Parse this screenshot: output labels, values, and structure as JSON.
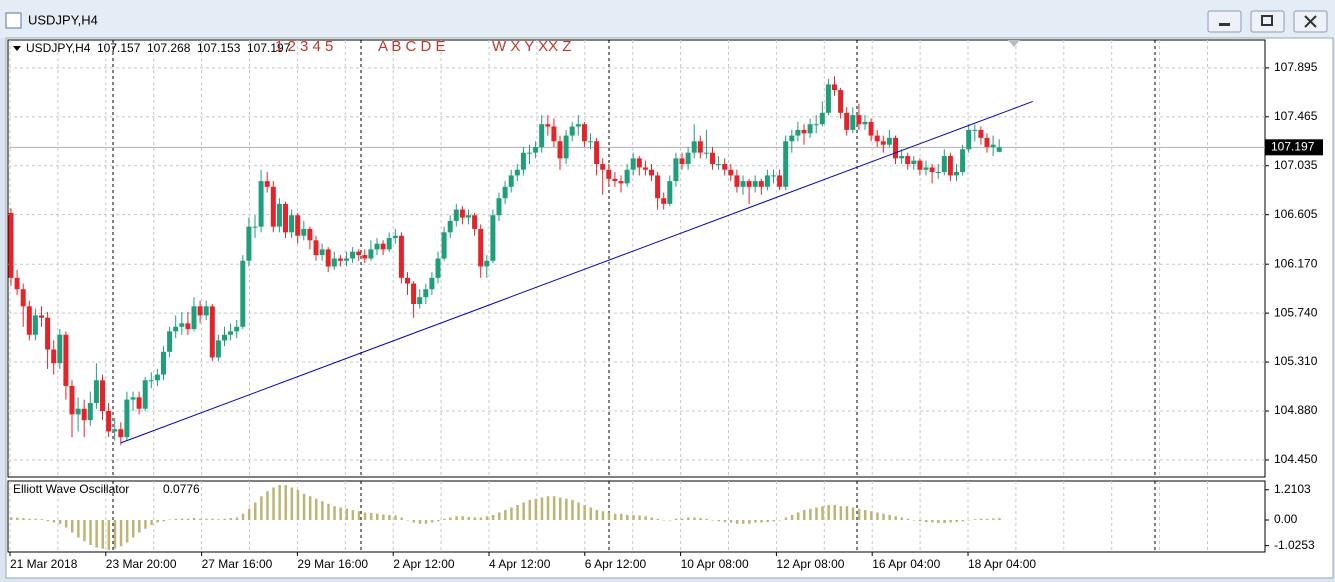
{
  "window": {
    "title": "USDJPY,H4"
  },
  "chart_data": {
    "type": "candlestick",
    "symbol": "USDJPY,H4",
    "up_color": "#1f9e7c",
    "down_color": "#e3242b",
    "grid": true,
    "wave_labels": [
      "1 2 3 4 5",
      "A B C D E",
      "W X Y XX Z"
    ],
    "ylim": [
      104.3,
      108.14
    ],
    "yticks": [
      {
        "value": 104.45,
        "label": "104.450"
      },
      {
        "value": 104.88,
        "label": "104.880"
      },
      {
        "value": 105.31,
        "label": "105.310"
      },
      {
        "value": 105.74,
        "label": "105.740"
      },
      {
        "value": 106.17,
        "label": "106.170"
      },
      106.605,
      107.035,
      107.465,
      107.895
    ],
    "time_labels": [
      "21 Mar 2018",
      "23 Mar 20:00",
      "27 Mar 16:00",
      "29 Mar 16:00",
      "2 Apr 12:00",
      "4 Apr 12:00",
      "6 Apr 12:00",
      "10 Apr 08:00",
      "12 Apr 08:00",
      "16 Apr 04:00",
      "18 Apr 04:00"
    ],
    "trendline": {
      "color": "#0000c8",
      "start": {
        "index": 18,
        "price": 104.6
      },
      "end": {
        "index": 167.5,
        "price": 107.6
      }
    },
    "ohlc": [
      [
        106.62,
        106.66,
        105.98,
        106.05
      ],
      [
        106.05,
        106.12,
        105.9,
        105.95
      ],
      [
        105.95,
        106.0,
        105.62,
        105.8
      ],
      [
        105.8,
        105.85,
        105.5,
        105.55
      ],
      [
        105.55,
        105.78,
        105.5,
        105.72
      ],
      [
        105.72,
        105.8,
        105.62,
        105.7
      ],
      [
        105.7,
        105.75,
        105.25,
        105.42
      ],
      [
        105.42,
        105.5,
        105.2,
        105.3
      ],
      [
        105.3,
        105.6,
        105.25,
        105.55
      ],
      [
        105.55,
        105.58,
        104.98,
        105.1
      ],
      [
        105.1,
        105.15,
        104.65,
        104.85
      ],
      [
        104.85,
        105.0,
        104.7,
        104.9
      ],
      [
        104.9,
        104.98,
        104.65,
        104.8
      ],
      [
        104.8,
        105.05,
        104.75,
        104.95
      ],
      [
        104.95,
        105.3,
        104.9,
        105.15
      ],
      [
        105.15,
        105.2,
        104.8,
        104.88
      ],
      [
        104.88,
        104.95,
        104.65,
        104.7
      ],
      [
        104.7,
        104.82,
        104.62,
        104.72
      ],
      [
        104.72,
        104.78,
        104.58,
        104.65
      ],
      [
        104.65,
        105.05,
        104.62,
        104.98
      ],
      [
        104.98,
        105.05,
        104.88,
        105.0
      ],
      [
        105.0,
        105.05,
        104.85,
        104.9
      ],
      [
        104.9,
        105.18,
        104.88,
        105.15
      ],
      [
        105.15,
        105.22,
        105.08,
        105.15
      ],
      [
        105.15,
        105.25,
        105.1,
        105.2
      ],
      [
        105.2,
        105.45,
        105.15,
        105.4
      ],
      [
        105.4,
        105.62,
        105.35,
        105.58
      ],
      [
        105.58,
        105.72,
        105.52,
        105.62
      ],
      [
        105.62,
        105.75,
        105.55,
        105.65
      ],
      [
        105.65,
        105.75,
        105.55,
        105.6
      ],
      [
        105.6,
        105.88,
        105.58,
        105.8
      ],
      [
        105.8,
        105.85,
        105.65,
        105.72
      ],
      [
        105.72,
        105.85,
        105.68,
        105.8
      ],
      [
        105.8,
        105.82,
        105.32,
        105.35
      ],
      [
        105.35,
        105.55,
        105.32,
        105.5
      ],
      [
        105.5,
        105.62,
        105.45,
        105.55
      ],
      [
        105.55,
        105.65,
        105.5,
        105.58
      ],
      [
        105.58,
        105.68,
        105.52,
        105.62
      ],
      [
        105.62,
        106.25,
        105.6,
        106.2
      ],
      [
        106.2,
        106.58,
        106.15,
        106.5
      ],
      [
        106.5,
        106.6,
        106.4,
        106.5
      ],
      [
        106.5,
        107.0,
        106.45,
        106.9
      ],
      [
        106.9,
        106.98,
        106.8,
        106.85
      ],
      [
        106.85,
        106.9,
        106.45,
        106.5
      ],
      [
        106.5,
        106.75,
        106.45,
        106.7
      ],
      [
        106.7,
        106.72,
        106.4,
        106.45
      ],
      [
        106.45,
        106.65,
        106.4,
        106.6
      ],
      [
        106.6,
        106.62,
        106.35,
        106.42
      ],
      [
        106.42,
        106.55,
        106.38,
        106.48
      ],
      [
        106.48,
        106.5,
        106.3,
        106.38
      ],
      [
        106.38,
        106.42,
        106.2,
        106.25
      ],
      [
        106.25,
        106.35,
        106.2,
        106.3
      ],
      [
        106.3,
        106.32,
        106.1,
        106.15
      ],
      [
        106.15,
        106.28,
        106.12,
        106.22
      ],
      [
        106.22,
        106.25,
        106.15,
        106.2
      ],
      [
        106.2,
        106.28,
        106.15,
        106.22
      ],
      [
        106.22,
        106.32,
        106.18,
        106.28
      ],
      [
        106.28,
        106.3,
        106.2,
        106.25
      ],
      [
        106.25,
        106.3,
        106.18,
        106.22
      ],
      [
        106.22,
        106.38,
        106.2,
        106.3
      ],
      [
        106.3,
        106.4,
        106.25,
        106.35
      ],
      [
        106.35,
        106.38,
        106.25,
        106.3
      ],
      [
        106.3,
        106.45,
        106.28,
        106.4
      ],
      [
        106.4,
        106.48,
        106.35,
        106.42
      ],
      [
        106.42,
        106.45,
        106.0,
        106.05
      ],
      [
        106.05,
        106.1,
        105.9,
        106.0
      ],
      [
        106.0,
        106.02,
        105.7,
        105.82
      ],
      [
        105.82,
        105.95,
        105.78,
        105.88
      ],
      [
        105.88,
        106.0,
        105.82,
        105.95
      ],
      [
        105.95,
        106.1,
        105.9,
        106.05
      ],
      [
        106.05,
        106.28,
        106.0,
        106.22
      ],
      [
        106.22,
        106.5,
        106.2,
        106.45
      ],
      [
        106.45,
        106.6,
        106.4,
        106.55
      ],
      [
        106.55,
        106.7,
        106.5,
        106.65
      ],
      [
        106.65,
        106.68,
        106.52,
        106.58
      ],
      [
        106.58,
        106.65,
        106.52,
        106.6
      ],
      [
        106.6,
        106.62,
        106.42,
        106.48
      ],
      [
        106.48,
        106.52,
        106.05,
        106.15
      ],
      [
        106.15,
        106.25,
        106.05,
        106.2
      ],
      [
        106.2,
        106.65,
        106.18,
        106.6
      ],
      [
        106.6,
        106.8,
        106.55,
        106.75
      ],
      [
        106.75,
        106.9,
        106.7,
        106.85
      ],
      [
        106.85,
        107.0,
        106.8,
        106.95
      ],
      [
        106.95,
        107.05,
        106.9,
        107.0
      ],
      [
        107.0,
        107.2,
        106.95,
        107.15
      ],
      [
        107.15,
        107.22,
        107.05,
        107.15
      ],
      [
        107.15,
        107.25,
        107.1,
        107.2
      ],
      [
        107.2,
        107.48,
        107.15,
        107.4
      ],
      [
        107.4,
        107.48,
        107.3,
        107.38
      ],
      [
        107.38,
        107.45,
        107.2,
        107.25
      ],
      [
        107.25,
        107.3,
        107.0,
        107.1
      ],
      [
        107.1,
        107.35,
        107.05,
        107.3
      ],
      [
        107.3,
        107.42,
        107.25,
        107.38
      ],
      [
        107.38,
        107.48,
        107.3,
        107.4
      ],
      [
        107.4,
        107.42,
        107.2,
        107.25
      ],
      [
        107.25,
        107.32,
        107.18,
        107.25
      ],
      [
        107.25,
        107.28,
        106.95,
        107.05
      ],
      [
        107.05,
        107.1,
        106.78,
        107.0
      ],
      [
        107.0,
        107.05,
        106.85,
        106.92
      ],
      [
        106.92,
        106.98,
        106.85,
        106.9
      ],
      [
        106.9,
        106.95,
        106.8,
        106.88
      ],
      [
        106.88,
        107.05,
        106.85,
        107.0
      ],
      [
        107.0,
        107.15,
        106.95,
        107.1
      ],
      [
        107.1,
        107.12,
        106.95,
        107.02
      ],
      [
        107.02,
        107.08,
        106.95,
        107.0
      ],
      [
        107.0,
        107.05,
        106.9,
        106.95
      ],
      [
        106.95,
        106.98,
        106.65,
        106.75
      ],
      [
        106.75,
        106.8,
        106.65,
        106.7
      ],
      [
        106.7,
        106.95,
        106.68,
        106.9
      ],
      [
        106.9,
        107.15,
        106.85,
        107.1
      ],
      [
        107.1,
        107.15,
        107.0,
        107.05
      ],
      [
        107.05,
        107.2,
        107.0,
        107.15
      ],
      [
        107.15,
        107.4,
        107.1,
        107.25
      ],
      [
        107.25,
        107.3,
        107.1,
        107.15
      ],
      [
        107.15,
        107.35,
        107.1,
        107.15
      ],
      [
        107.15,
        107.2,
        107.0,
        107.05
      ],
      [
        107.05,
        107.12,
        107.0,
        107.05
      ],
      [
        107.05,
        107.1,
        106.95,
        107.0
      ],
      [
        107.0,
        107.05,
        106.9,
        106.95
      ],
      [
        106.95,
        107.0,
        106.8,
        106.85
      ],
      [
        106.85,
        106.95,
        106.78,
        106.9
      ],
      [
        106.9,
        106.92,
        106.7,
        106.85
      ],
      [
        106.85,
        106.95,
        106.8,
        106.9
      ],
      [
        106.9,
        106.92,
        106.78,
        106.85
      ],
      [
        106.85,
        107.0,
        106.82,
        106.95
      ],
      [
        106.95,
        107.0,
        106.88,
        106.95
      ],
      [
        106.95,
        107.0,
        106.82,
        106.85
      ],
      [
        106.85,
        107.3,
        106.82,
        107.25
      ],
      [
        107.25,
        107.35,
        107.15,
        107.3
      ],
      [
        107.3,
        107.42,
        107.25,
        107.35
      ],
      [
        107.35,
        107.4,
        107.22,
        107.32
      ],
      [
        107.32,
        107.45,
        107.28,
        107.4
      ],
      [
        107.4,
        107.48,
        107.32,
        107.4
      ],
      [
        107.4,
        107.6,
        107.38,
        107.5
      ],
      [
        107.5,
        107.8,
        107.48,
        107.75
      ],
      [
        107.75,
        107.82,
        107.65,
        107.7
      ],
      [
        107.7,
        107.72,
        107.45,
        107.5
      ],
      [
        107.5,
        107.55,
        107.3,
        107.35
      ],
      [
        107.35,
        107.55,
        107.32,
        107.48
      ],
      [
        107.48,
        107.58,
        107.35,
        107.4
      ],
      [
        107.4,
        107.48,
        107.35,
        107.42
      ],
      [
        107.42,
        107.45,
        107.25,
        107.3
      ],
      [
        107.3,
        107.35,
        107.2,
        107.25
      ],
      [
        107.25,
        107.3,
        107.15,
        107.22
      ],
      [
        107.22,
        107.35,
        107.2,
        107.28
      ],
      [
        107.28,
        107.3,
        107.05,
        107.1
      ],
      [
        107.1,
        107.18,
        107.05,
        107.12
      ],
      [
        107.12,
        107.15,
        107.0,
        107.05
      ],
      [
        107.05,
        107.12,
        107.0,
        107.08
      ],
      [
        107.08,
        107.1,
        106.95,
        107.0
      ],
      [
        107.0,
        107.08,
        106.95,
        107.02
      ],
      [
        107.02,
        107.05,
        106.88,
        106.98
      ],
      [
        106.98,
        107.05,
        106.92,
        106.98
      ],
      [
        106.98,
        107.18,
        106.95,
        107.12
      ],
      [
        107.12,
        107.15,
        106.9,
        106.95
      ],
      [
        106.95,
        107.05,
        106.9,
        106.98
      ],
      [
        106.98,
        107.22,
        106.95,
        107.18
      ],
      [
        107.18,
        107.4,
        107.15,
        107.35
      ],
      [
        107.35,
        107.4,
        107.25,
        107.35
      ],
      [
        107.35,
        107.38,
        107.22,
        107.28
      ],
      [
        107.28,
        107.32,
        107.15,
        107.2
      ],
      [
        107.2,
        107.3,
        107.12,
        107.22
      ],
      [
        107.157,
        107.268,
        107.153,
        107.197
      ]
    ],
    "oscillator": {
      "type": "bar",
      "name": "Elliott Wave Oscillator",
      "color": "#bdb576",
      "ylim": [
        -1.28,
        1.56
      ],
      "yticks": [
        1.2103,
        {
          "value": 0,
          "label": "0.00"
        },
        -1.0253
      ],
      "values": [
        0.1,
        0.1,
        0.08,
        0.05,
        0.05,
        0.03,
        -0.05,
        -0.1,
        -0.15,
        -0.3,
        -0.5,
        -0.7,
        -0.85,
        -1.0,
        -1.1,
        -1.15,
        -1.2,
        -1.15,
        -1.05,
        -0.9,
        -0.7,
        -0.5,
        -0.35,
        -0.2,
        -0.1,
        -0.05,
        0.02,
        0.05,
        0.05,
        0.05,
        0.08,
        0.05,
        0.05,
        0.05,
        0.03,
        0.05,
        0.08,
        0.1,
        0.25,
        0.45,
        0.7,
        0.95,
        1.15,
        1.3,
        1.4,
        1.4,
        1.3,
        1.2,
        1.05,
        0.95,
        0.85,
        0.75,
        0.65,
        0.55,
        0.5,
        0.45,
        0.4,
        0.35,
        0.3,
        0.28,
        0.25,
        0.22,
        0.2,
        0.18,
        0.1,
        0.0,
        -0.1,
        -0.15,
        -0.15,
        -0.1,
        -0.05,
        0.05,
        0.1,
        0.15,
        0.15,
        0.12,
        0.1,
        0.1,
        0.15,
        0.2,
        0.3,
        0.4,
        0.5,
        0.6,
        0.7,
        0.8,
        0.85,
        0.9,
        0.95,
        0.95,
        0.9,
        0.85,
        0.8,
        0.7,
        0.6,
        0.5,
        0.4,
        0.35,
        0.3,
        0.25,
        0.25,
        0.2,
        0.2,
        0.18,
        0.15,
        0.1,
        0.05,
        0.0,
        0.0,
        0.05,
        0.05,
        0.1,
        0.1,
        0.08,
        0.05,
        0.0,
        -0.05,
        -0.08,
        -0.1,
        -0.15,
        -0.15,
        -0.15,
        -0.1,
        -0.1,
        -0.08,
        -0.05,
        0.0,
        0.1,
        0.2,
        0.3,
        0.4,
        0.45,
        0.5,
        0.55,
        0.6,
        0.6,
        0.55,
        0.55,
        0.5,
        0.45,
        0.4,
        0.35,
        0.3,
        0.25,
        0.2,
        0.15,
        0.1,
        0.05,
        0.0,
        -0.05,
        -0.08,
        -0.1,
        -0.12,
        -0.12,
        -0.1,
        -0.08,
        -0.05,
        0.0,
        0.03,
        0.05,
        0.05,
        0.06,
        0.0776
      ]
    }
  }
}
